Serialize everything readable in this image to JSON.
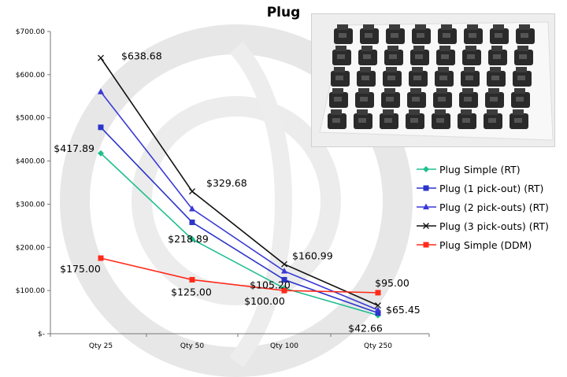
{
  "chart_data": {
    "type": "line",
    "title": "Plug",
    "xlabel": "",
    "ylabel": "",
    "categories": [
      "Qty 25",
      "Qty 50",
      "Qty 100",
      "Qty 250"
    ],
    "ylim": [
      0,
      700
    ],
    "yticks": [
      0,
      100,
      200,
      300,
      400,
      500,
      600,
      700
    ],
    "ytick_labels": [
      "$-",
      "$100.00",
      "$200.00",
      "$300.00",
      "$400.00",
      "$500.00",
      "$600.00",
      "$700.00"
    ],
    "grid": false,
    "legend_position": "right",
    "series": [
      {
        "name": "Plug Simple (RT)",
        "values": [
          417.89,
          218.89,
          105.2,
          42.66
        ],
        "color": "#1fbf8f",
        "marker": "diamond"
      },
      {
        "name": "Plug (1 pick-out) (RT)",
        "values": [
          478,
          258,
          125,
          48
        ],
        "color": "#2b35c9",
        "marker": "square"
      },
      {
        "name": "Plug (2 pick-outs) (RT)",
        "values": [
          560,
          289,
          145,
          55
        ],
        "color": "#3a3ad6",
        "marker": "triangle"
      },
      {
        "name": "Plug (3 pick-outs) (RT)",
        "values": [
          638.68,
          329.68,
          160.99,
          65.45
        ],
        "color": "#111111",
        "marker": "x"
      },
      {
        "name": "Plug Simple (DDM)",
        "values": [
          175,
          125,
          100,
          95
        ],
        "color": "#ff2a1a",
        "marker": "square"
      }
    ],
    "data_labels": [
      {
        "text": "$638.68",
        "series": 3,
        "point": 0
      },
      {
        "text": "$329.68",
        "series": 3,
        "point": 1
      },
      {
        "text": "$160.99",
        "series": 3,
        "point": 2
      },
      {
        "text": "$65.45",
        "series": 3,
        "point": 3
      },
      {
        "text": "$417.89",
        "series": 0,
        "point": 0
      },
      {
        "text": "$218.89",
        "series": 0,
        "point": 1
      },
      {
        "text": "$105.20",
        "series": 0,
        "point": 2
      },
      {
        "text": "$42.66",
        "series": 0,
        "point": 3
      },
      {
        "text": "$175.00",
        "series": 4,
        "point": 0
      },
      {
        "text": "$125.00",
        "series": 4,
        "point": 1
      },
      {
        "text": "$100.00",
        "series": 4,
        "point": 2
      },
      {
        "text": "$95.00",
        "series": 4,
        "point": 3
      }
    ]
  },
  "photo": {
    "icon": "plug-parts-photo"
  }
}
